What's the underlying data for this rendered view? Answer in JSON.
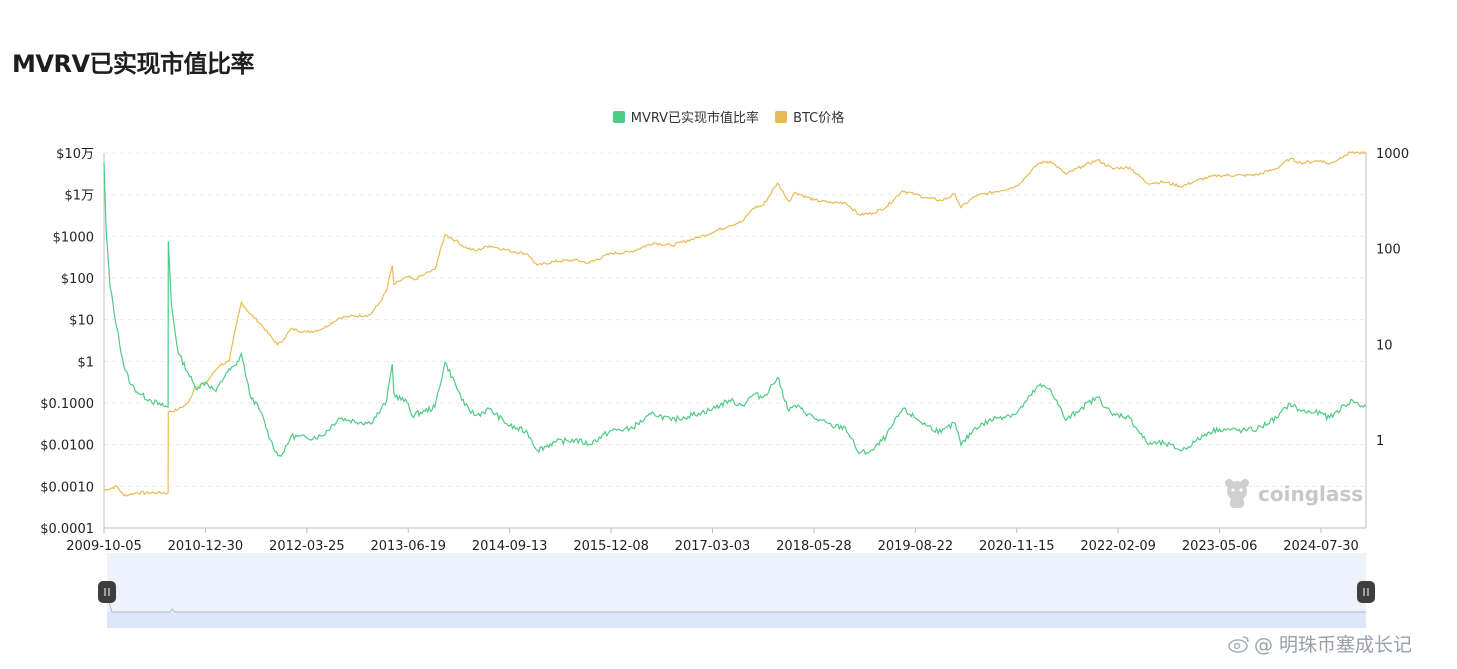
{
  "page": {
    "title": "MVRV已实现市值比率"
  },
  "legend": [
    {
      "label": "MVRV已实现市值比率",
      "color": "#4ecb84"
    },
    {
      "label": "BTC价格",
      "color": "#e7bc55"
    }
  ],
  "watermark": {
    "text": "coinglass",
    "icon": "mascot-icon"
  },
  "footer": {
    "icon": "weibo-icon",
    "text": "@ 明珠币塞成长记"
  },
  "chart_data": {
    "type": "line",
    "x_ticks": [
      "2009-10-05",
      "2010-12-30",
      "2012-03-25",
      "2013-06-19",
      "2014-09-13",
      "2015-12-08",
      "2017-03-03",
      "2018-05-28",
      "2019-08-22",
      "2020-11-15",
      "2022-02-09",
      "2023-05-06",
      "2024-07-30"
    ],
    "x_range": [
      "2009-10-05",
      "2025-02-15"
    ],
    "y_left": {
      "scale": "log",
      "range": [
        0.0001,
        100000
      ],
      "ticks": [
        {
          "value": 100000,
          "label": "$10万"
        },
        {
          "value": 10000,
          "label": "$1万"
        },
        {
          "value": 1000,
          "label": "$1000"
        },
        {
          "value": 100,
          "label": "$100"
        },
        {
          "value": 10,
          "label": "$10"
        },
        {
          "value": 1,
          "label": "$1"
        },
        {
          "value": 0.1,
          "label": "$0.1000"
        },
        {
          "value": 0.01,
          "label": "$0.0100"
        },
        {
          "value": 0.001,
          "label": "$0.0010"
        },
        {
          "value": 0.0001,
          "label": "$0.0001"
        }
      ]
    },
    "y_right": {
      "scale": "log",
      "range": [
        0.12,
        1000
      ],
      "ticks": [
        {
          "value": 1000,
          "label": "1000"
        },
        {
          "value": 100,
          "label": "100"
        },
        {
          "value": 10,
          "label": "10"
        },
        {
          "value": 1,
          "label": "1"
        }
      ]
    },
    "grid": true,
    "series": [
      {
        "name": "BTC价格",
        "axis": "left",
        "color": "#e7bc55",
        "points": [
          [
            "2009-10-05",
            0.0008
          ],
          [
            "2009-12-01",
            0.001
          ],
          [
            "2010-01-01",
            0.0006
          ],
          [
            "2010-03-01",
            0.0007
          ],
          [
            "2010-06-01",
            0.0007
          ],
          [
            "2010-07-17",
            0.0007
          ],
          [
            "2010-07-18",
            0.06
          ],
          [
            "2010-09-01",
            0.07
          ],
          [
            "2010-10-15",
            0.1
          ],
          [
            "2010-11-15",
            0.25
          ],
          [
            "2011-01-01",
            0.3
          ],
          [
            "2011-03-01",
            0.8
          ],
          [
            "2011-04-15",
            1.0
          ],
          [
            "2011-05-15",
            7
          ],
          [
            "2011-06-08",
            26
          ],
          [
            "2011-07-15",
            14
          ],
          [
            "2011-09-01",
            8
          ],
          [
            "2011-11-15",
            2.5
          ],
          [
            "2011-12-15",
            3.5
          ],
          [
            "2012-01-15",
            6
          ],
          [
            "2012-03-25",
            5
          ],
          [
            "2012-06-01",
            6
          ],
          [
            "2012-08-15",
            11
          ],
          [
            "2012-10-01",
            12
          ],
          [
            "2012-12-31",
            13
          ],
          [
            "2013-02-15",
            27
          ],
          [
            "2013-03-15",
            50
          ],
          [
            "2013-04-09",
            200
          ],
          [
            "2013-04-16",
            70
          ],
          [
            "2013-06-19",
            108
          ],
          [
            "2013-07-15",
            90
          ],
          [
            "2013-09-01",
            125
          ],
          [
            "2013-10-15",
            160
          ],
          [
            "2013-11-30",
            1100
          ],
          [
            "2014-01-15",
            800
          ],
          [
            "2014-02-25",
            550
          ],
          [
            "2014-04-15",
            450
          ],
          [
            "2014-06-15",
            600
          ],
          [
            "2014-09-13",
            450
          ],
          [
            "2014-12-01",
            380
          ],
          [
            "2015-01-14",
            200
          ],
          [
            "2015-04-01",
            250
          ],
          [
            "2015-07-01",
            270
          ],
          [
            "2015-09-01",
            230
          ],
          [
            "2015-12-08",
            390
          ],
          [
            "2016-03-01",
            420
          ],
          [
            "2016-06-15",
            700
          ],
          [
            "2016-09-01",
            600
          ],
          [
            "2016-12-31",
            950
          ],
          [
            "2017-03-03",
            1250
          ],
          [
            "2017-05-15",
            1800
          ],
          [
            "2017-07-15",
            2300
          ],
          [
            "2017-09-01",
            4800
          ],
          [
            "2017-10-15",
            5600
          ],
          [
            "2017-12-17",
            19000
          ],
          [
            "2018-02-06",
            6900
          ],
          [
            "2018-03-05",
            11400
          ],
          [
            "2018-05-28",
            7400
          ],
          [
            "2018-08-15",
            6400
          ],
          [
            "2018-10-15",
            6500
          ],
          [
            "2018-12-15",
            3300
          ],
          [
            "2019-02-15",
            3600
          ],
          [
            "2019-04-15",
            5100
          ],
          [
            "2019-06-26",
            12500
          ],
          [
            "2019-08-22",
            10100
          ],
          [
            "2019-10-15",
            8300
          ],
          [
            "2019-12-15",
            7200
          ],
          [
            "2020-02-15",
            10200
          ],
          [
            "2020-03-12",
            4900
          ],
          [
            "2020-05-15",
            9300
          ],
          [
            "2020-08-15",
            11900
          ],
          [
            "2020-11-15",
            16000
          ],
          [
            "2020-12-31",
            29000
          ],
          [
            "2021-02-21",
            57000
          ],
          [
            "2021-04-14",
            63500
          ],
          [
            "2021-06-22",
            31000
          ],
          [
            "2021-09-01",
            48000
          ],
          [
            "2021-11-10",
            68000
          ],
          [
            "2022-01-15",
            42000
          ],
          [
            "2022-02-09",
            44000
          ],
          [
            "2022-04-01",
            45000
          ],
          [
            "2022-06-18",
            19000
          ],
          [
            "2022-09-01",
            20000
          ],
          [
            "2022-11-21",
            15800
          ],
          [
            "2023-01-15",
            21000
          ],
          [
            "2023-03-15",
            26000
          ],
          [
            "2023-05-06",
            29000
          ],
          [
            "2023-08-15",
            29000
          ],
          [
            "2023-10-20",
            30000
          ],
          [
            "2024-01-15",
            43000
          ],
          [
            "2024-03-14",
            73000
          ],
          [
            "2024-05-01",
            58000
          ],
          [
            "2024-07-30",
            66000
          ],
          [
            "2024-09-06",
            54000
          ],
          [
            "2024-11-12",
            88000
          ],
          [
            "2024-12-17",
            106000
          ],
          [
            "2025-01-15",
            100000
          ],
          [
            "2025-02-15",
            97000
          ]
        ]
      },
      {
        "name": "MVRV已实现市值比率",
        "axis": "right",
        "color": "#4ecb84",
        "points": [
          [
            "2009-10-05",
            800
          ],
          [
            "2009-10-15",
            150
          ],
          [
            "2009-11-01",
            40
          ],
          [
            "2009-12-01",
            15
          ],
          [
            "2010-01-01",
            6
          ],
          [
            "2010-02-01",
            3.8
          ],
          [
            "2010-03-15",
            3.0
          ],
          [
            "2010-05-01",
            2.6
          ],
          [
            "2010-06-15",
            2.3
          ],
          [
            "2010-07-17",
            2.2
          ],
          [
            "2010-07-18",
            120
          ],
          [
            "2010-08-01",
            25
          ],
          [
            "2010-09-01",
            8
          ],
          [
            "2010-10-15",
            5
          ],
          [
            "2010-11-15",
            3.5
          ],
          [
            "2011-01-01",
            4
          ],
          [
            "2011-02-15",
            3.2
          ],
          [
            "2011-04-01",
            5
          ],
          [
            "2011-05-15",
            6
          ],
          [
            "2011-06-08",
            8
          ],
          [
            "2011-07-15",
            3
          ],
          [
            "2011-09-01",
            2
          ],
          [
            "2011-10-15",
            1.0
          ],
          [
            "2011-11-18",
            0.68
          ],
          [
            "2011-12-15",
            0.75
          ],
          [
            "2012-01-15",
            1.1
          ],
          [
            "2012-03-25",
            1.05
          ],
          [
            "2012-06-01",
            1.1
          ],
          [
            "2012-08-15",
            1.7
          ],
          [
            "2012-10-01",
            1.6
          ],
          [
            "2012-12-31",
            1.5
          ],
          [
            "2013-02-15",
            2.0
          ],
          [
            "2013-03-15",
            2.6
          ],
          [
            "2013-04-09",
            6.2
          ],
          [
            "2013-04-16",
            3.0
          ],
          [
            "2013-06-19",
            2.4
          ],
          [
            "2013-07-05",
            1.8
          ],
          [
            "2013-09-01",
            2.0
          ],
          [
            "2013-10-15",
            2.2
          ],
          [
            "2013-11-30",
            6.5
          ],
          [
            "2014-01-15",
            3.8
          ],
          [
            "2014-02-25",
            2.3
          ],
          [
            "2014-04-15",
            1.8
          ],
          [
            "2014-06-15",
            2.1
          ],
          [
            "2014-09-13",
            1.4
          ],
          [
            "2014-12-01",
            1.2
          ],
          [
            "2015-01-14",
            0.78
          ],
          [
            "2015-04-01",
            0.95
          ],
          [
            "2015-07-01",
            1.0
          ],
          [
            "2015-09-01",
            0.9
          ],
          [
            "2015-12-08",
            1.25
          ],
          [
            "2016-03-01",
            1.3
          ],
          [
            "2016-06-15",
            1.9
          ],
          [
            "2016-09-01",
            1.6
          ],
          [
            "2016-12-31",
            1.9
          ],
          [
            "2017-03-03",
            2.1
          ],
          [
            "2017-05-15",
            2.6
          ],
          [
            "2017-07-15",
            2.3
          ],
          [
            "2017-09-01",
            3.0
          ],
          [
            "2017-10-15",
            2.8
          ],
          [
            "2017-12-17",
            4.5
          ],
          [
            "2018-02-06",
            2.0
          ],
          [
            "2018-03-05",
            2.3
          ],
          [
            "2018-05-28",
            1.7
          ],
          [
            "2018-08-15",
            1.4
          ],
          [
            "2018-10-15",
            1.35
          ],
          [
            "2018-12-15",
            0.72
          ],
          [
            "2019-02-15",
            0.78
          ],
          [
            "2019-04-15",
            1.1
          ],
          [
            "2019-06-26",
            2.1
          ],
          [
            "2019-08-22",
            1.7
          ],
          [
            "2019-10-15",
            1.4
          ],
          [
            "2019-12-15",
            1.2
          ],
          [
            "2020-02-15",
            1.5
          ],
          [
            "2020-03-12",
            0.88
          ],
          [
            "2020-05-15",
            1.35
          ],
          [
            "2020-08-15",
            1.7
          ],
          [
            "2020-11-15",
            1.9
          ],
          [
            "2020-12-31",
            2.6
          ],
          [
            "2021-02-21",
            3.7
          ],
          [
            "2021-04-14",
            3.4
          ],
          [
            "2021-06-22",
            1.6
          ],
          [
            "2021-09-01",
            2.2
          ],
          [
            "2021-11-10",
            2.8
          ],
          [
            "2022-01-15",
            1.8
          ],
          [
            "2022-02-09",
            1.85
          ],
          [
            "2022-04-01",
            1.7
          ],
          [
            "2022-06-18",
            0.92
          ],
          [
            "2022-09-01",
            0.92
          ],
          [
            "2022-11-21",
            0.78
          ],
          [
            "2023-01-15",
            0.95
          ],
          [
            "2023-03-15",
            1.2
          ],
          [
            "2023-05-06",
            1.3
          ],
          [
            "2023-08-15",
            1.25
          ],
          [
            "2023-10-20",
            1.3
          ],
          [
            "2024-01-15",
            1.7
          ],
          [
            "2024-03-14",
            2.4
          ],
          [
            "2024-05-01",
            2.0
          ],
          [
            "2024-07-30",
            1.9
          ],
          [
            "2024-09-06",
            1.7
          ],
          [
            "2024-11-12",
            2.3
          ],
          [
            "2024-12-17",
            2.6
          ],
          [
            "2025-01-15",
            2.3
          ],
          [
            "2025-02-15",
            2.25
          ]
        ]
      }
    ]
  }
}
